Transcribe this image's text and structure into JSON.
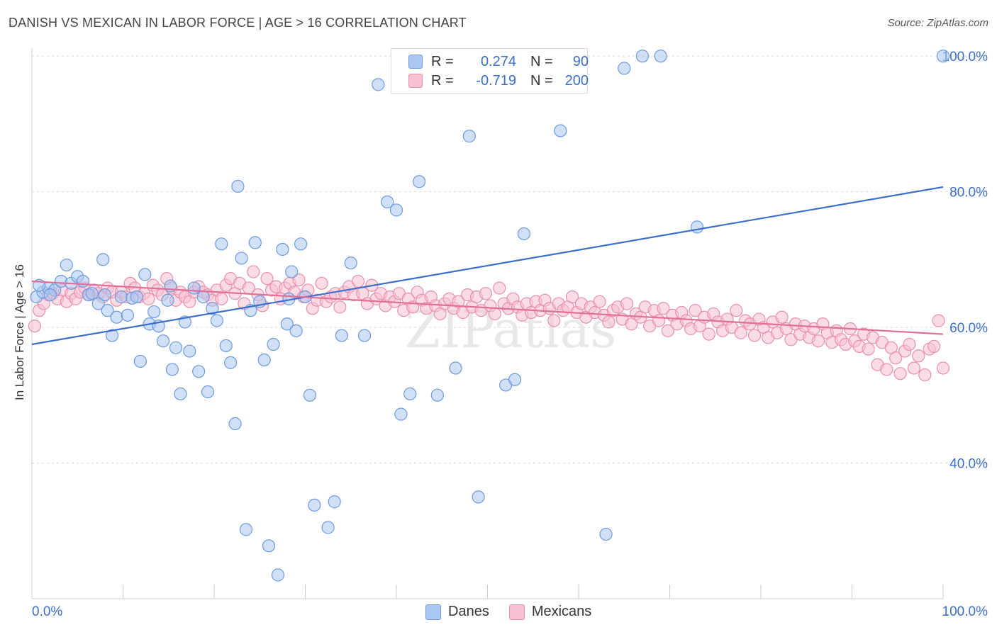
{
  "title": "DANISH VS MEXICAN IN LABOR FORCE | AGE > 16 CORRELATION CHART",
  "source": "Source: ZipAtlas.com",
  "watermark": "ZIPatlas",
  "legend": {
    "rows": [
      {
        "r_label": "R =",
        "r_value": "0.274",
        "n_label": "N =",
        "n_value": "90",
        "color": "#a9c7f0",
        "border": "#6d9be0"
      },
      {
        "r_label": "R =",
        "r_value": "-0.719",
        "n_label": "N =",
        "n_value": "200",
        "color": "#f8c0d0",
        "border": "#e890ac"
      }
    ]
  },
  "bottom_legend": [
    {
      "label": "Danes",
      "color": "#a9c7f0",
      "border": "#6d9be0"
    },
    {
      "label": "Mexicans",
      "color": "#f8c0d0",
      "border": "#e890ac"
    }
  ],
  "chart_data": {
    "type": "scatter",
    "title": "DANISH VS MEXICAN IN LABOR FORCE | AGE > 16 CORRELATION CHART",
    "xlabel": "",
    "ylabel": "In Labor Force | Age > 16",
    "xlim": [
      0,
      100
    ],
    "ylim": [
      20,
      102
    ],
    "x_tick_labels": [
      "0.0%",
      "100.0%"
    ],
    "y_ticks": [
      40,
      60,
      80,
      100
    ],
    "y_tick_labels": [
      "40.0%",
      "60.0%",
      "80.0%",
      "100.0%"
    ],
    "grid": true,
    "series": [
      {
        "name": "Danes",
        "color": "#6d9be0",
        "fill": "#a9c7f0",
        "trend": {
          "x": [
            0,
            100
          ],
          "y": [
            57.5,
            80.7
          ],
          "color": "#3b6fc9"
        },
        "points": [
          [
            0.5,
            64.5
          ],
          [
            1.2,
            65.2
          ],
          [
            1.8,
            65.8
          ],
          [
            2.5,
            65.5
          ],
          [
            3.2,
            66.8
          ],
          [
            3.8,
            69.2
          ],
          [
            4.3,
            66.5
          ],
          [
            5.0,
            67.5
          ],
          [
            5.6,
            66.8
          ],
          [
            6.2,
            64.8
          ],
          [
            6.6,
            65.0
          ],
          [
            7.3,
            63.5
          ],
          [
            7.8,
            70.0
          ],
          [
            8.3,
            62.5
          ],
          [
            8.8,
            58.8
          ],
          [
            9.3,
            61.5
          ],
          [
            9.8,
            64.5
          ],
          [
            10.5,
            61.8
          ],
          [
            11.0,
            64.3
          ],
          [
            11.5,
            64.5
          ],
          [
            11.9,
            55.0
          ],
          [
            12.4,
            67.8
          ],
          [
            12.9,
            60.5
          ],
          [
            13.4,
            62.3
          ],
          [
            13.9,
            60.2
          ],
          [
            14.4,
            58.0
          ],
          [
            14.9,
            64.0
          ],
          [
            15.4,
            53.8
          ],
          [
            15.8,
            57.0
          ],
          [
            16.3,
            50.2
          ],
          [
            16.8,
            60.8
          ],
          [
            17.3,
            56.5
          ],
          [
            17.8,
            65.8
          ],
          [
            18.3,
            53.5
          ],
          [
            18.8,
            64.5
          ],
          [
            19.3,
            50.5
          ],
          [
            19.8,
            62.8
          ],
          [
            20.3,
            61.0
          ],
          [
            20.8,
            72.3
          ],
          [
            21.3,
            57.3
          ],
          [
            21.8,
            54.8
          ],
          [
            22.3,
            45.8
          ],
          [
            22.6,
            80.8
          ],
          [
            23.0,
            70.2
          ],
          [
            23.5,
            30.2
          ],
          [
            24.0,
            62.5
          ],
          [
            24.5,
            72.5
          ],
          [
            25.0,
            63.8
          ],
          [
            25.5,
            55.2
          ],
          [
            26.0,
            27.8
          ],
          [
            26.5,
            57.5
          ],
          [
            27.0,
            23.5
          ],
          [
            27.5,
            71.5
          ],
          [
            28.0,
            60.5
          ],
          [
            28.5,
            68.2
          ],
          [
            29.0,
            59.5
          ],
          [
            29.5,
            72.3
          ],
          [
            30.0,
            64.5
          ],
          [
            30.5,
            50.0
          ],
          [
            31.0,
            33.8
          ],
          [
            32.5,
            30.5
          ],
          [
            33.2,
            34.3
          ],
          [
            34.0,
            58.8
          ],
          [
            35.0,
            69.5
          ],
          [
            36.5,
            58.8
          ],
          [
            38.0,
            95.8
          ],
          [
            39.0,
            78.5
          ],
          [
            40.0,
            77.3
          ],
          [
            40.5,
            47.2
          ],
          [
            41.5,
            50.2
          ],
          [
            42.5,
            81.5
          ],
          [
            44.5,
            50.0
          ],
          [
            46.5,
            54.0
          ],
          [
            48.0,
            88.2
          ],
          [
            49.0,
            35.0
          ],
          [
            52.0,
            51.5
          ],
          [
            53.0,
            52.3
          ],
          [
            54.0,
            73.8
          ],
          [
            58.0,
            89.0
          ],
          [
            63.0,
            29.5
          ],
          [
            65.0,
            98.2
          ],
          [
            67.0,
            100.0
          ],
          [
            69.0,
            100.0
          ],
          [
            73.0,
            74.8
          ],
          [
            0.8,
            66.2
          ],
          [
            2.0,
            64.8
          ],
          [
            8.0,
            64.8
          ],
          [
            28.2,
            64.2
          ],
          [
            15.2,
            66.1
          ],
          [
            100,
            100
          ]
        ]
      },
      {
        "name": "Mexicans",
        "color": "#e890ac",
        "fill": "#f8c0d0",
        "trend": {
          "x": [
            0,
            100
          ],
          "y": [
            66.8,
            59.0
          ],
          "color": "#e0709a"
        },
        "points": [
          [
            0.3,
            60.2
          ],
          [
            0.8,
            62.5
          ],
          [
            1.3,
            63.5
          ],
          [
            1.8,
            64.8
          ],
          [
            2.3,
            65.0
          ],
          [
            2.8,
            64.2
          ],
          [
            3.3,
            65.5
          ],
          [
            3.8,
            63.8
          ],
          [
            4.3,
            65.0
          ],
          [
            4.8,
            64.2
          ],
          [
            5.3,
            65.2
          ],
          [
            5.8,
            65.8
          ],
          [
            6.3,
            64.8
          ],
          [
            6.8,
            65.5
          ],
          [
            7.3,
            65.0
          ],
          [
            7.8,
            64.5
          ],
          [
            8.3,
            65.8
          ],
          [
            8.8,
            65.2
          ],
          [
            9.3,
            64.0
          ],
          [
            9.8,
            65.2
          ],
          [
            10.3,
            64.5
          ],
          [
            10.8,
            66.5
          ],
          [
            11.3,
            65.8
          ],
          [
            11.8,
            64.5
          ],
          [
            12.3,
            65.0
          ],
          [
            12.8,
            64.2
          ],
          [
            13.3,
            66.2
          ],
          [
            13.8,
            65.5
          ],
          [
            14.3,
            64.8
          ],
          [
            14.8,
            67.2
          ],
          [
            15.3,
            65.8
          ],
          [
            15.8,
            64.0
          ],
          [
            16.3,
            65.2
          ],
          [
            16.8,
            64.5
          ],
          [
            17.3,
            63.8
          ],
          [
            17.8,
            65.2
          ],
          [
            18.3,
            66.0
          ],
          [
            18.8,
            65.2
          ],
          [
            19.3,
            64.8
          ],
          [
            19.8,
            64.0
          ],
          [
            20.3,
            65.5
          ],
          [
            20.8,
            64.2
          ],
          [
            21.3,
            66.2
          ],
          [
            21.8,
            67.2
          ],
          [
            22.3,
            65.0
          ],
          [
            22.8,
            66.5
          ],
          [
            23.3,
            63.5
          ],
          [
            23.8,
            65.8
          ],
          [
            24.3,
            68.2
          ],
          [
            24.8,
            64.8
          ],
          [
            25.3,
            63.2
          ],
          [
            25.8,
            67.2
          ],
          [
            26.3,
            65.5
          ],
          [
            26.8,
            66.0
          ],
          [
            27.3,
            64.2
          ],
          [
            27.8,
            65.8
          ],
          [
            28.3,
            66.5
          ],
          [
            28.8,
            65.2
          ],
          [
            29.3,
            67.0
          ],
          [
            29.8,
            64.5
          ],
          [
            30.3,
            65.5
          ],
          [
            30.8,
            62.8
          ],
          [
            31.3,
            64.0
          ],
          [
            31.8,
            66.5
          ],
          [
            32.3,
            63.8
          ],
          [
            32.8,
            64.5
          ],
          [
            33.3,
            65.0
          ],
          [
            33.8,
            63.0
          ],
          [
            34.3,
            65.2
          ],
          [
            34.8,
            66.0
          ],
          [
            35.3,
            64.8
          ],
          [
            35.8,
            66.8
          ],
          [
            36.3,
            65.0
          ],
          [
            36.8,
            63.5
          ],
          [
            37.3,
            66.2
          ],
          [
            37.8,
            64.2
          ],
          [
            38.3,
            65.0
          ],
          [
            38.8,
            63.2
          ],
          [
            39.3,
            64.5
          ],
          [
            39.8,
            63.8
          ],
          [
            40.3,
            65.0
          ],
          [
            40.8,
            62.5
          ],
          [
            41.3,
            64.2
          ],
          [
            41.8,
            63.0
          ],
          [
            42.3,
            65.2
          ],
          [
            42.8,
            64.0
          ],
          [
            43.3,
            62.8
          ],
          [
            43.8,
            64.5
          ],
          [
            44.3,
            63.2
          ],
          [
            44.8,
            62.0
          ],
          [
            45.3,
            63.5
          ],
          [
            45.8,
            64.2
          ],
          [
            46.3,
            62.8
          ],
          [
            46.8,
            63.8
          ],
          [
            47.3,
            62.2
          ],
          [
            47.8,
            64.8
          ],
          [
            48.3,
            63.0
          ],
          [
            48.8,
            64.5
          ],
          [
            49.3,
            62.5
          ],
          [
            49.8,
            65.0
          ],
          [
            50.3,
            63.2
          ],
          [
            50.8,
            62.0
          ],
          [
            51.3,
            65.8
          ],
          [
            51.8,
            63.5
          ],
          [
            52.3,
            62.8
          ],
          [
            52.8,
            64.2
          ],
          [
            53.3,
            63.0
          ],
          [
            53.8,
            61.8
          ],
          [
            54.3,
            63.5
          ],
          [
            54.8,
            62.2
          ],
          [
            55.3,
            63.8
          ],
          [
            55.8,
            62.5
          ],
          [
            56.3,
            64.0
          ],
          [
            56.8,
            62.8
          ],
          [
            57.3,
            61.0
          ],
          [
            57.8,
            63.5
          ],
          [
            58.3,
            62.5
          ],
          [
            58.8,
            63.0
          ],
          [
            59.3,
            64.5
          ],
          [
            59.8,
            62.2
          ],
          [
            60.3,
            63.5
          ],
          [
            60.8,
            61.5
          ],
          [
            61.3,
            63.0
          ],
          [
            61.8,
            62.2
          ],
          [
            62.3,
            63.8
          ],
          [
            62.8,
            61.8
          ],
          [
            63.3,
            60.8
          ],
          [
            63.8,
            62.5
          ],
          [
            64.3,
            63.0
          ],
          [
            64.8,
            61.2
          ],
          [
            65.3,
            63.5
          ],
          [
            65.8,
            60.5
          ],
          [
            66.3,
            62.0
          ],
          [
            66.8,
            61.5
          ],
          [
            67.3,
            63.0
          ],
          [
            67.8,
            60.2
          ],
          [
            68.3,
            62.5
          ],
          [
            68.8,
            61.0
          ],
          [
            69.3,
            62.8
          ],
          [
            69.8,
            59.5
          ],
          [
            70.3,
            61.8
          ],
          [
            70.8,
            60.5
          ],
          [
            71.3,
            62.2
          ],
          [
            71.8,
            61.0
          ],
          [
            72.3,
            59.8
          ],
          [
            72.8,
            62.5
          ],
          [
            73.3,
            60.2
          ],
          [
            73.8,
            61.5
          ],
          [
            74.3,
            59.0
          ],
          [
            74.8,
            62.0
          ],
          [
            75.3,
            60.8
          ],
          [
            75.8,
            59.5
          ],
          [
            76.3,
            61.2
          ],
          [
            76.8,
            60.0
          ],
          [
            77.3,
            62.5
          ],
          [
            77.8,
            59.2
          ],
          [
            78.3,
            61.0
          ],
          [
            78.8,
            60.5
          ],
          [
            79.3,
            58.8
          ],
          [
            79.8,
            61.2
          ],
          [
            80.3,
            60.0
          ],
          [
            80.8,
            58.5
          ],
          [
            81.3,
            60.8
          ],
          [
            81.8,
            59.2
          ],
          [
            82.3,
            61.5
          ],
          [
            82.8,
            59.8
          ],
          [
            83.3,
            58.2
          ],
          [
            83.8,
            60.5
          ],
          [
            84.3,
            59.0
          ],
          [
            84.8,
            60.2
          ],
          [
            85.3,
            58.5
          ],
          [
            85.8,
            59.8
          ],
          [
            86.3,
            58.0
          ],
          [
            86.8,
            60.5
          ],
          [
            87.3,
            59.2
          ],
          [
            87.8,
            57.8
          ],
          [
            88.3,
            59.5
          ],
          [
            88.8,
            58.2
          ],
          [
            89.3,
            57.5
          ],
          [
            89.8,
            59.8
          ],
          [
            90.3,
            58.0
          ],
          [
            90.8,
            57.2
          ],
          [
            91.3,
            59.0
          ],
          [
            91.8,
            56.8
          ],
          [
            92.3,
            58.5
          ],
          [
            92.8,
            54.5
          ],
          [
            93.3,
            57.8
          ],
          [
            93.8,
            53.8
          ],
          [
            94.3,
            57.0
          ],
          [
            94.8,
            55.5
          ],
          [
            95.3,
            53.2
          ],
          [
            95.8,
            56.5
          ],
          [
            96.3,
            57.5
          ],
          [
            96.8,
            54.0
          ],
          [
            97.3,
            55.8
          ],
          [
            98.0,
            53.0
          ],
          [
            98.5,
            56.8
          ],
          [
            99.0,
            57.2
          ],
          [
            99.5,
            61.0
          ],
          [
            100.0,
            54.0
          ]
        ]
      }
    ]
  }
}
